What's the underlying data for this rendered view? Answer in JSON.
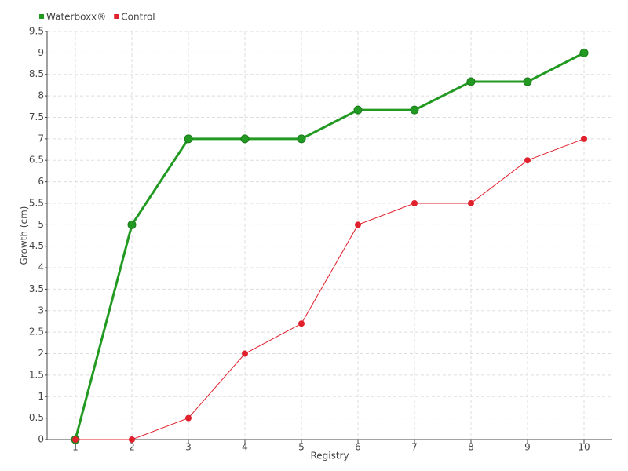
{
  "chart_data": {
    "type": "line",
    "x_label": "Registry",
    "y_label": "Growth (cm)",
    "categories": [
      "1",
      "2",
      "3",
      "4",
      "5",
      "6",
      "7",
      "8",
      "9",
      "10"
    ],
    "series": [
      {
        "name": "Waterboxx®",
        "color": "#229a22",
        "values": [
          0,
          5,
          7,
          7,
          7,
          7.67,
          7.67,
          8.33,
          8.33,
          9
        ]
      },
      {
        "name": "Control",
        "color": "#e0202c",
        "values": [
          0,
          0,
          0.5,
          2,
          2.7,
          5,
          5.5,
          5.5,
          6.5,
          7
        ]
      }
    ],
    "ylim": [
      0,
      9.5
    ],
    "yticks": [
      0,
      0.5,
      1,
      1.5,
      2,
      2.5,
      3,
      3.5,
      4,
      4.5,
      5,
      5.5,
      6,
      6.5,
      7,
      7.5,
      8,
      8.5,
      9,
      9.5
    ],
    "grid": true
  }
}
